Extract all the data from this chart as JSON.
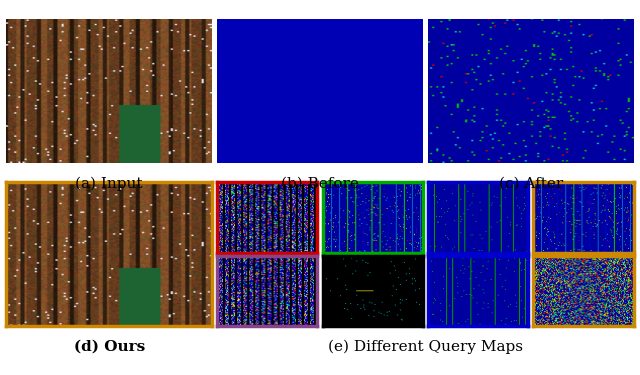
{
  "fig_width": 6.4,
  "fig_height": 3.75,
  "dpi": 100,
  "top_row_labels": [
    "(a) Input",
    "(b) Before",
    "(c) After"
  ],
  "bottom_row_labels": [
    "(d) Ours",
    "(e) Different Query Maps"
  ],
  "label_fontsize": 11,
  "border_colors": [
    "#cc0000",
    "#00aa00",
    "#0000cc",
    "#cc8800",
    "#884488",
    "#000000",
    "#0000cc",
    "#cc8800"
  ],
  "ours_border_color": "#cc8800",
  "background_color": "#ffffff"
}
